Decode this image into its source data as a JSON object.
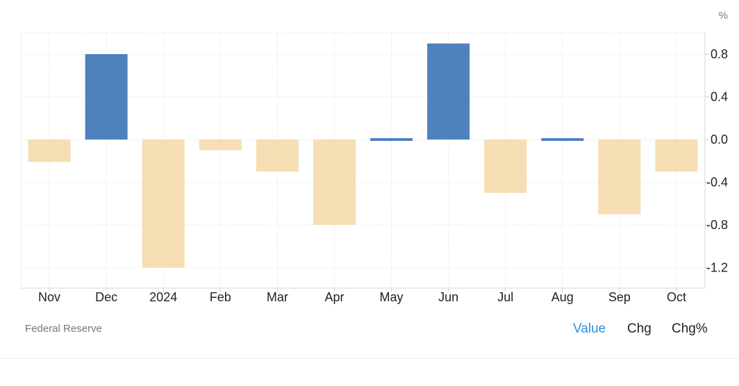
{
  "chart_data": {
    "type": "bar",
    "unit": "%",
    "categories": [
      "Nov",
      "Dec",
      "2024",
      "Feb",
      "Mar",
      "Apr",
      "May",
      "Jun",
      "Jul",
      "Aug",
      "Sep",
      "Oct"
    ],
    "values": [
      -0.21,
      0.8,
      -1.2,
      -0.1,
      -0.3,
      -0.8,
      0.02,
      0.9,
      -0.5,
      0.02,
      -0.7,
      -0.3
    ],
    "ylim": [
      -1.4,
      1.0
    ],
    "yticks": [
      "0.8",
      "0.4",
      "0.0",
      "-0.4",
      "-0.8",
      "-1.2"
    ],
    "ytick_values": [
      0.8,
      0.4,
      0.0,
      -0.4,
      -0.8,
      -1.2
    ],
    "grid": true,
    "colors": {
      "positive": "#4f81bd",
      "negative": "#f5deb3",
      "grid": "#e8e8e8",
      "axis": "#dddddd"
    }
  },
  "source": "Federal Reserve",
  "tabs": [
    {
      "label": "Value",
      "active": true
    },
    {
      "label": "Chg",
      "active": false
    },
    {
      "label": "Chg%",
      "active": false
    }
  ]
}
